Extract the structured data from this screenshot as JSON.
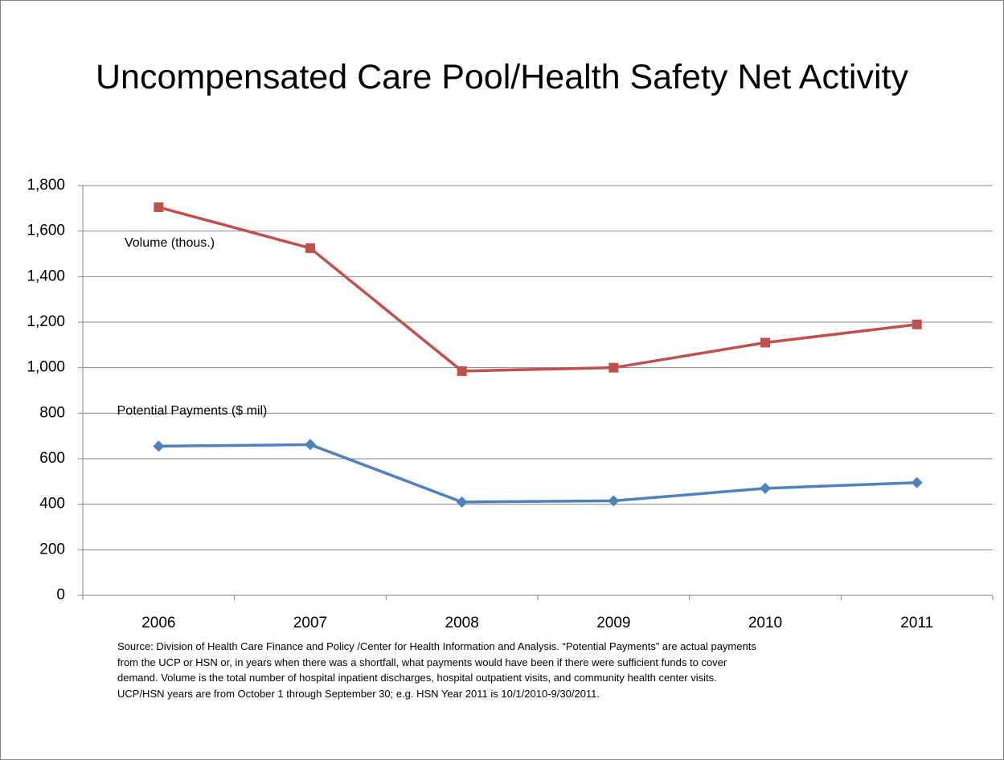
{
  "chart_data": {
    "type": "line",
    "title": "Uncompensated Care Pool/Health Safety Net Activity",
    "categories": [
      "2006",
      "2007",
      "2008",
      "2009",
      "2010",
      "2011"
    ],
    "series": [
      {
        "name": "Volume (thous.)",
        "color": "#c0504d",
        "marker": "square",
        "values": [
          1705,
          1525,
          985,
          1000,
          1110,
          1190
        ]
      },
      {
        "name": "Potential Payments ($ mil)",
        "color": "#4f81bd",
        "marker": "diamond",
        "values": [
          655,
          662,
          410,
          415,
          470,
          495
        ]
      }
    ],
    "ylim": [
      0,
      1800
    ],
    "yticks": [
      0,
      200,
      400,
      600,
      800,
      {
        "value": 1000,
        "label": "1,000"
      },
      {
        "value": 1200,
        "label": "1,200"
      },
      {
        "value": 1400,
        "label": "1,400"
      },
      {
        "value": 1600,
        "label": "1,600"
      },
      {
        "value": 1800,
        "label": "1,800"
      }
    ],
    "grid": true,
    "source": [
      "Source:  Division of Health Care Finance and Policy /Center for Health Information and Analysis.  “Potential Payments” are actual payments",
      "from the UCP or HSN or, in years when there was a shortfall, what payments would have been if there were sufficient funds to cover",
      "demand. Volume is the total number of hospital inpatient discharges, hospital outpatient visits, and community health center visits.",
      "UCP/HSN  years are from October 1 through September  30; e.g.  HSN Year 2011 is 10/1/2010-9/30/2011."
    ]
  }
}
